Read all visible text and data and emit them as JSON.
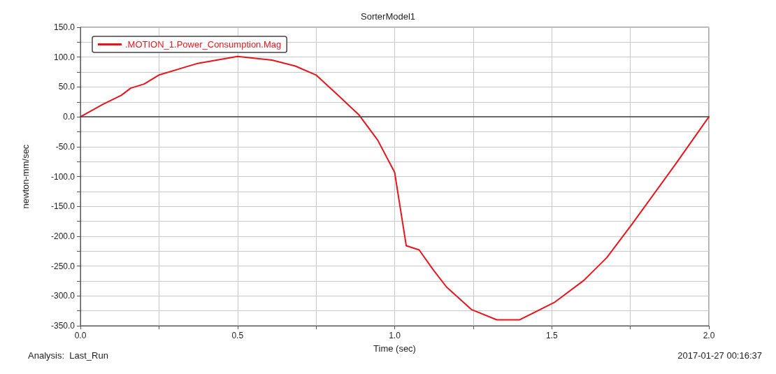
{
  "chart_data": {
    "type": "line",
    "title": "SorterModel1",
    "xlabel": "Time (sec)",
    "ylabel": "newton-mm/sec",
    "x": [
      0,
      0.072,
      0.13,
      0.16,
      0.203,
      0.25,
      0.37,
      0.5,
      0.61,
      0.684,
      0.75,
      0.82,
      0.887,
      0.946,
      1.0,
      1.037,
      1.078,
      1.121,
      1.165,
      1.245,
      1.325,
      1.398,
      1.508,
      1.602,
      1.675,
      1.755,
      1.893,
      2.0
    ],
    "series": [
      {
        "name": ".MOTION_1.Power_Consumption.Mag",
        "color": "#e8141c",
        "values": [
          0,
          21,
          36,
          48,
          55,
          70,
          89,
          101,
          95,
          85,
          70,
          36,
          3,
          -39,
          -93,
          -216,
          -223,
          -255,
          -285,
          -323,
          -340,
          -340,
          -311,
          -274,
          -236,
          -180,
          -80,
          0
        ]
      }
    ],
    "xlim": [
      0,
      2
    ],
    "xticks": [
      {
        "value": 0,
        "label": "0.0"
      },
      {
        "value": 0.25,
        "label": null
      },
      {
        "value": 0.5,
        "label": "0.5"
      },
      {
        "value": 0.75,
        "label": null
      },
      {
        "value": 1,
        "label": "1.0"
      },
      {
        "value": 1.25,
        "label": null
      },
      {
        "value": 1.5,
        "label": "1.5"
      },
      {
        "value": 1.75,
        "label": null
      },
      {
        "value": 2,
        "label": "2.0"
      }
    ],
    "ylim": [
      -350,
      150
    ],
    "yticks": [
      {
        "value": -350,
        "label": "-350.0"
      },
      {
        "value": -325,
        "label": null
      },
      {
        "value": -300,
        "label": "-300.0"
      },
      {
        "value": -275,
        "label": null
      },
      {
        "value": -250,
        "label": "-250.0"
      },
      {
        "value": -225,
        "label": null
      },
      {
        "value": -200,
        "label": "-200.0"
      },
      {
        "value": -175,
        "label": null
      },
      {
        "value": -150,
        "label": "-150.0"
      },
      {
        "value": -125,
        "label": null
      },
      {
        "value": -100,
        "label": "-100.0"
      },
      {
        "value": -75,
        "label": null
      },
      {
        "value": -50,
        "label": "-50.0"
      },
      {
        "value": -25,
        "label": null
      },
      {
        "value": 0,
        "label": "0.0"
      },
      {
        "value": 25,
        "label": null
      },
      {
        "value": 50,
        "label": "50.0"
      },
      {
        "value": 75,
        "label": null
      },
      {
        "value": 100,
        "label": "100.0"
      },
      {
        "value": 125,
        "label": null
      },
      {
        "value": 150,
        "label": "150.0"
      }
    ],
    "ref_lines": [
      {
        "axis": "y",
        "value": 0,
        "color": "#404040"
      }
    ],
    "grid": true,
    "legend": "top left",
    "marker": "none",
    "line_style": "solid",
    "annotations": [
      "Analysis:  Last_Run",
      "2017-01-27 00:16:37"
    ]
  }
}
